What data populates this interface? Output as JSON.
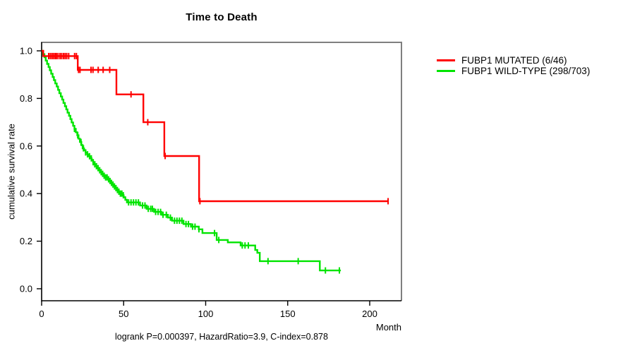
{
  "chart_data": {
    "type": "line",
    "subtype": "kaplan-meier-step",
    "title": "Time to Death",
    "xlabel": "Month",
    "ylabel": "cumulative survival rate",
    "footer": "logrank P=0.000397, HazardRatio=3.9, C-index=0.878",
    "stats": {
      "logrank_p": "0.000397",
      "hazard_ratio": "3.9",
      "c_index": "0.878"
    },
    "xlim": [
      0,
      219
    ],
    "ylim": [
      0,
      1
    ],
    "xticks": [
      0,
      50,
      100,
      150,
      200
    ],
    "yticks": [
      0.0,
      0.2,
      0.4,
      0.6,
      0.8,
      1.0
    ],
    "grid": false,
    "legend_position": "right-outside-top",
    "frame_colors": {
      "top_right": "#7f7f7f",
      "left_bottom": "#000000"
    },
    "series": [
      {
        "name": "FUBP1 MUTATED (6/46)",
        "color": "#ff0000",
        "events": 6,
        "n": 46,
        "steps": [
          [
            0,
            1.0
          ],
          [
            1,
            0.978
          ],
          [
            22,
            0.92
          ],
          [
            45.6,
            0.817
          ],
          [
            62,
            0.7
          ],
          [
            74.8,
            0.558
          ],
          [
            96,
            0.368
          ]
        ],
        "end_month": 211.2,
        "censors": [
          4.3,
          5.3,
          6.3,
          7.2,
          8.2,
          9,
          10,
          11.2,
          12.2,
          13.3,
          14.3,
          15.3,
          16.5,
          20.1,
          21.2,
          22.5,
          23.4,
          30.1,
          31.3,
          34.5,
          37.5,
          41.5,
          54.5,
          64.7,
          75.3,
          96.5,
          211.2
        ]
      },
      {
        "name": "FUBP1 WILD-TYPE (298/703)",
        "color": "#00e400",
        "events": 298,
        "n": 703,
        "steps": [
          [
            0,
            1.0
          ],
          [
            0.8,
            0.986
          ],
          [
            1.7,
            0.973
          ],
          [
            2.5,
            0.959
          ],
          [
            3.3,
            0.945
          ],
          [
            4.2,
            0.932
          ],
          [
            5,
            0.918
          ],
          [
            5.8,
            0.904
          ],
          [
            6.7,
            0.89
          ],
          [
            7.5,
            0.877
          ],
          [
            8.3,
            0.863
          ],
          [
            9.2,
            0.85
          ],
          [
            10,
            0.836
          ],
          [
            10.8,
            0.822
          ],
          [
            11.7,
            0.808
          ],
          [
            12.5,
            0.795
          ],
          [
            13.3,
            0.781
          ],
          [
            14.2,
            0.767
          ],
          [
            15,
            0.754
          ],
          [
            15.8,
            0.74
          ],
          [
            16.7,
            0.727
          ],
          [
            17.5,
            0.713
          ],
          [
            18.3,
            0.699
          ],
          [
            19.2,
            0.685
          ],
          [
            20,
            0.672
          ],
          [
            20.8,
            0.658
          ],
          [
            21.7,
            0.645
          ],
          [
            22.5,
            0.631
          ],
          [
            23.3,
            0.617
          ],
          [
            24.2,
            0.604
          ],
          [
            25,
            0.59
          ],
          [
            25.9,
            0.582
          ],
          [
            26.8,
            0.573
          ],
          [
            27.8,
            0.565
          ],
          [
            28.7,
            0.557
          ],
          [
            29.6,
            0.548
          ],
          [
            30.5,
            0.54
          ],
          [
            31.4,
            0.532
          ],
          [
            32.3,
            0.523
          ],
          [
            33.3,
            0.515
          ],
          [
            34.2,
            0.507
          ],
          [
            35.1,
            0.498
          ],
          [
            36,
            0.49
          ],
          [
            37,
            0.483
          ],
          [
            38,
            0.475
          ],
          [
            39,
            0.468
          ],
          [
            40,
            0.46
          ],
          [
            41,
            0.453
          ],
          [
            42,
            0.445
          ],
          [
            43,
            0.438
          ],
          [
            44,
            0.43
          ],
          [
            45,
            0.423
          ],
          [
            46,
            0.415
          ],
          [
            47,
            0.408
          ],
          [
            48,
            0.4
          ],
          [
            49,
            0.393
          ],
          [
            50,
            0.385
          ],
          [
            51,
            0.374
          ],
          [
            52,
            0.363
          ],
          [
            60,
            0.35
          ],
          [
            64,
            0.336
          ],
          [
            68.5,
            0.323
          ],
          [
            73,
            0.311
          ],
          [
            77,
            0.299
          ],
          [
            79.5,
            0.286
          ],
          [
            86.5,
            0.272
          ],
          [
            91,
            0.261
          ],
          [
            95.8,
            0.25
          ],
          [
            98,
            0.234
          ],
          [
            106.7,
            0.205
          ],
          [
            113.5,
            0.195
          ],
          [
            121.3,
            0.182
          ],
          [
            130.2,
            0.163
          ],
          [
            131.5,
            0.151
          ],
          [
            133,
            0.116
          ],
          [
            169.6,
            0.077
          ]
        ],
        "end_month": 182.4,
        "censors": [
          20,
          22,
          24,
          25.5,
          26.8,
          28,
          29.2,
          30.3,
          31.4,
          32.4,
          33.4,
          34.4,
          35.4,
          36.3,
          37.2,
          38.1,
          39,
          39.9,
          40.8,
          41.7,
          42.6,
          43.5,
          44.4,
          45.3,
          46.2,
          47.1,
          48,
          48.9,
          49.8,
          53,
          54.5,
          56,
          57.5,
          59,
          61.5,
          63,
          65,
          66.5,
          67.5,
          69.5,
          71,
          72.5,
          74,
          76,
          78.5,
          81,
          82.5,
          84,
          85.5,
          88,
          89.5,
          92,
          93.5,
          95.9,
          105.4,
          108,
          122.3,
          124,
          126,
          138,
          156.4,
          173,
          181.5
        ]
      }
    ]
  }
}
